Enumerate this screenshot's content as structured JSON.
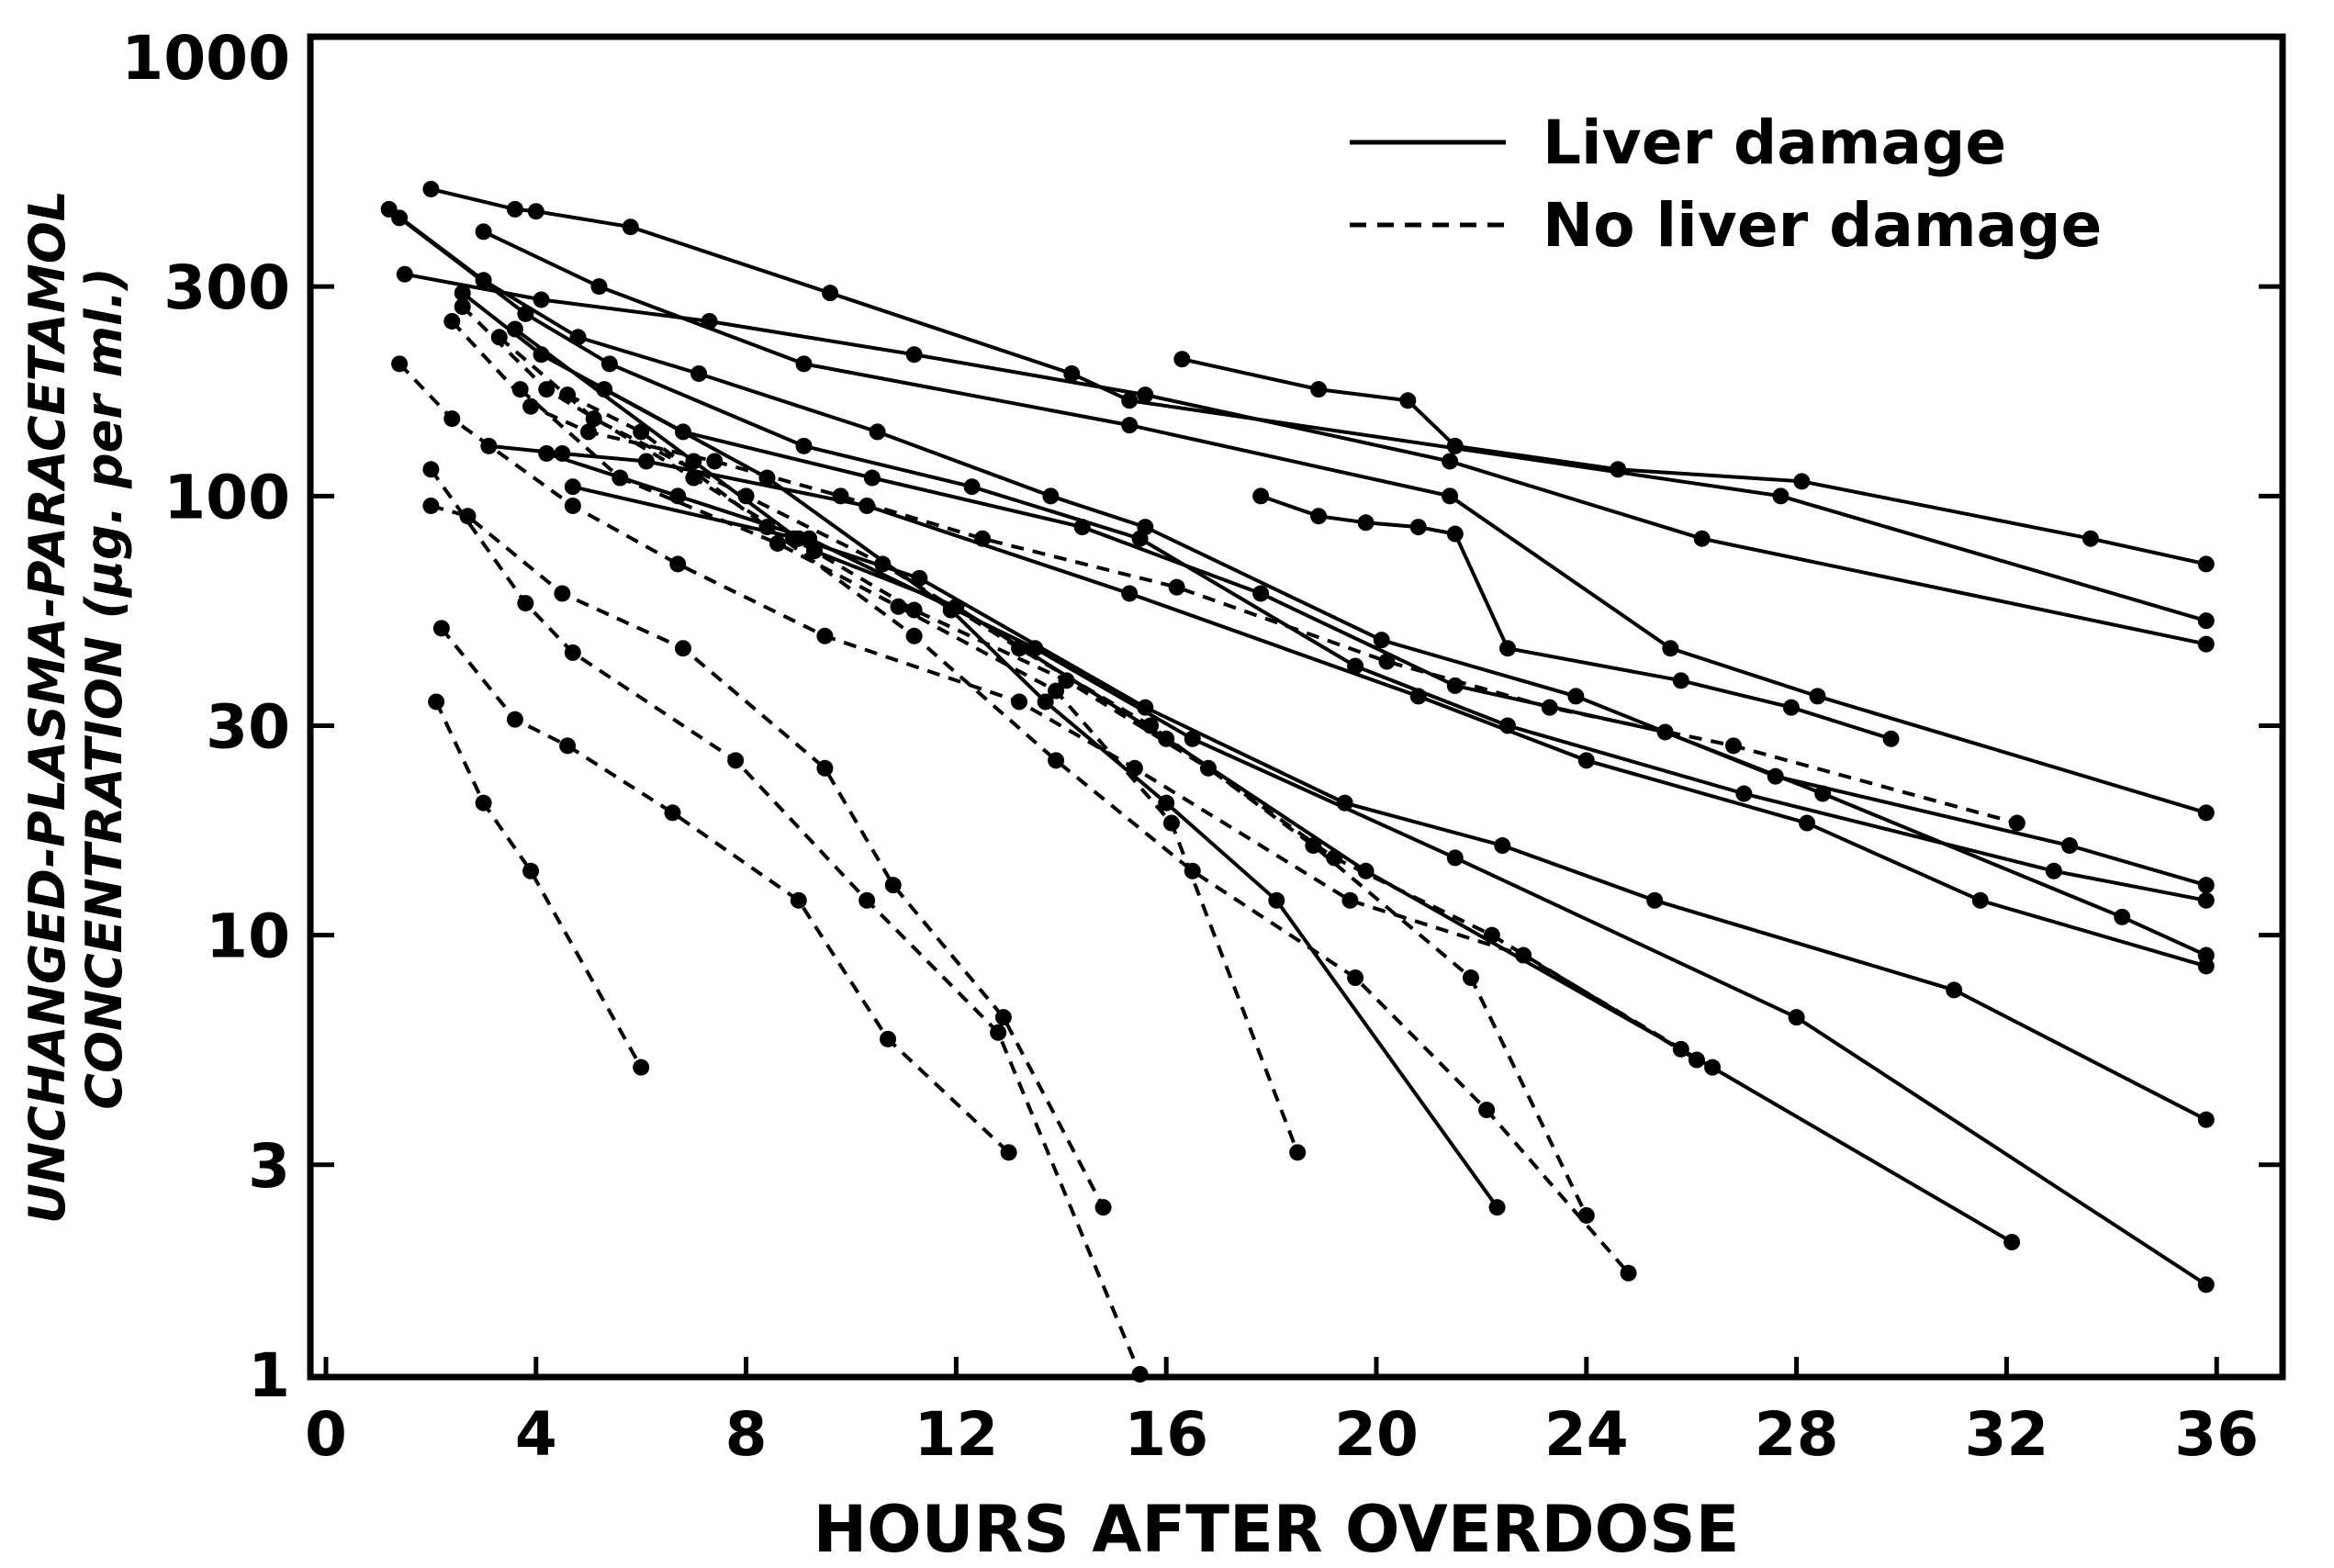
{
  "chart_data": {
    "type": "line",
    "title": "",
    "xlabel": "HOURS AFTER OVERDOSE",
    "ylabel_line1": "UNCHANGED-PLASMA-PARACETAMOL",
    "ylabel_line2": "CONCENTRATION (µg. per ml.)",
    "ylabel": "UNCHANGED-PLASMA-PARACETAMOL CONCENTRATION (µg. per ml.)",
    "xlim": [
      0,
      39
    ],
    "ylim": [
      1,
      1000
    ],
    "yscale": "log",
    "grid": false,
    "legend_position": "upper right",
    "x_ticks": [
      0,
      4,
      8,
      12,
      16,
      20,
      24,
      28,
      32,
      36
    ],
    "x_tick_labels": [
      "0",
      "4",
      "8",
      "12",
      "16",
      "20",
      "24",
      "28",
      "32",
      "36"
    ],
    "y_ticks": [
      1,
      3,
      10,
      30,
      100,
      300,
      1000
    ],
    "y_tick_labels": [
      "1",
      "3",
      "10",
      "30",
      "100",
      "300",
      "1000"
    ],
    "legend": [
      {
        "label": "Liver damage",
        "style": "solid"
      },
      {
        "label": "No liver damage",
        "style": "dashed"
      }
    ],
    "series": [
      {
        "name": "Liver damage 1",
        "group": "Liver damage",
        "x": [
          2.0,
          3.6,
          4.0,
          5.8,
          9.6,
          14.2,
          15.3,
          27.7,
          35.8
        ],
        "y": [
          500,
          450,
          445,
          410,
          290,
          190,
          165,
          100,
          52
        ]
      },
      {
        "name": "Liver damage 2",
        "group": "Liver damage",
        "x": [
          1.5,
          4.1,
          7.3,
          11.2,
          15.6,
          21.4,
          26.2,
          35.8
        ],
        "y": [
          320,
          280,
          250,
          210,
          170,
          120,
          80,
          46
        ]
      },
      {
        "name": "Liver damage 3",
        "group": "Liver damage",
        "x": [
          16.3,
          18.9,
          20.6,
          21.5,
          24.6,
          28.1,
          33.6,
          35.8
        ],
        "y": [
          205,
          175,
          165,
          130,
          115,
          108,
          80,
          70
        ]
      },
      {
        "name": "Liver damage 4",
        "group": "Liver damage",
        "x": [
          3.0,
          5.2,
          9.1,
          15.3,
          21.4,
          25.6,
          28.4,
          35.8
        ],
        "y": [
          400,
          300,
          200,
          145,
          100,
          45,
          35,
          19
        ]
      },
      {
        "name": "Liver damage 5",
        "group": "Liver damage",
        "x": [
          17.8,
          18.9,
          19.8,
          20.8,
          21.5,
          22.5,
          25.8,
          27.9,
          29.8
        ],
        "y": [
          100,
          90,
          87,
          85,
          82,
          45,
          38,
          33,
          28
        ]
      },
      {
        "name": "Liver damage 6",
        "group": "Liver damage",
        "x": [
          1.2,
          3.0,
          4.8,
          7.1,
          10.5,
          13.8,
          15.6,
          20.1,
          23.8,
          27.6,
          33.2,
          35.8
        ],
        "y": [
          450,
          310,
          230,
          190,
          140,
          100,
          85,
          47,
          35,
          23,
          16,
          13
        ]
      },
      {
        "name": "Liver damage 7",
        "group": "Liver damage",
        "x": [
          1.4,
          3.8,
          5.4,
          9.1,
          12.3,
          15.5,
          19.6,
          22.5,
          27.0,
          32.9,
          35.8
        ],
        "y": [
          430,
          260,
          200,
          130,
          105,
          80,
          41,
          30,
          21,
          14,
          12
        ]
      },
      {
        "name": "Liver damage 8",
        "group": "Liver damage",
        "x": [
          2.6,
          4.1,
          6.8,
          10.4,
          14.4,
          17.8,
          21.5,
          25.5,
          28.5,
          34.2,
          35.8
        ],
        "y": [
          290,
          210,
          140,
          110,
          85,
          60,
          37,
          29,
          21,
          11,
          9
        ]
      },
      {
        "name": "Liver damage 9",
        "group": "Liver damage",
        "x": [
          3.1,
          4.5,
          6.1,
          10.3,
          15.3,
          20.8,
          24.0,
          28.2,
          31.5,
          35.8
        ],
        "y": [
          130,
          125,
          120,
          95,
          60,
          35,
          25,
          18,
          12,
          8.5
        ]
      },
      {
        "name": "Liver damage 10",
        "group": "Liver damage",
        "x": [
          4.7,
          9.0,
          11.3,
          15.6,
          19.4,
          22.4,
          25.3,
          31.0,
          35.8
        ],
        "y": [
          105,
          80,
          65,
          33,
          20,
          16,
          12,
          7.5,
          3.8
        ]
      },
      {
        "name": "Liver damage 11",
        "group": "Liver damage",
        "x": [
          3.6,
          7.0,
          9.3,
          12.0,
          16.0,
          19.8,
          25.8,
          32.1
        ],
        "y": [
          240,
          120,
          75,
          56,
          28,
          14,
          5.5,
          2.0
        ]
      },
      {
        "name": "Liver damage 12",
        "group": "Liver damage",
        "x": [
          4.2,
          6.7,
          9.2,
          13.5,
          16.5,
          21.5,
          28.0,
          35.8
        ],
        "y": [
          125,
          100,
          80,
          45,
          28,
          15,
          6.5,
          1.6
        ]
      },
      {
        "name": "Liver damage 13",
        "group": "Liver damage",
        "x": [
          5.3,
          8.4,
          11.9,
          13.7,
          16.0,
          18.1,
          22.3
        ],
        "y": [
          175,
          110,
          55,
          34,
          20,
          12,
          2.4
        ]
      },
      {
        "name": "No liver damage 1",
        "group": "No liver damage",
        "x": [
          1.4,
          2.4,
          4.7,
          6.7,
          9.5,
          13.2,
          15.4,
          19.5,
          22.8,
          26.4
        ],
        "y": [
          200,
          150,
          95,
          70,
          48,
          34,
          24,
          12,
          9,
          5
        ]
      },
      {
        "name": "No liver damage 2",
        "group": "No liver damage",
        "x": [
          2.4,
          3.9,
          5.0,
          7.4,
          9.8,
          12.5,
          16.2,
          20.2,
          23.3,
          26.8,
          32.2
        ],
        "y": [
          250,
          160,
          140,
          120,
          100,
          80,
          62,
          42,
          33,
          27,
          18
        ]
      },
      {
        "name": "No liver damage 3",
        "group": "No liver damage",
        "x": [
          2.6,
          4.2,
          7.0,
          8.9,
          11.2,
          14.1,
          16.8,
          19.2,
          22.2,
          26.1
        ],
        "y": [
          270,
          175,
          110,
          80,
          55,
          38,
          24,
          15,
          10,
          5.2
        ]
      },
      {
        "name": "No liver damage 4",
        "group": "No liver damage",
        "x": [
          3.3,
          5.1,
          8.0,
          10.6,
          13.2,
          15.7,
          18.8,
          21.8,
          24.0
        ],
        "y": [
          230,
          150,
          100,
          70,
          45,
          30,
          16,
          8,
          2.3
        ]
      },
      {
        "name": "No liver damage 5",
        "group": "No liver damage",
        "x": [
          4.6,
          6.0,
          8.4,
          11.2,
          13.9,
          16.5,
          19.6,
          22.1,
          24.8
        ],
        "y": [
          170,
          140,
          85,
          48,
          25,
          14,
          8,
          4,
          1.7
        ]
      },
      {
        "name": "No liver damage 6",
        "group": "No liver damage",
        "x": [
          3.7,
          5.6,
          8.6,
          10.9,
          13.9,
          16.1,
          18.5
        ],
        "y": [
          175,
          110,
          78,
          56,
          36,
          18,
          3.2
        ]
      },
      {
        "name": "No liver damage 7",
        "group": "No liver damage",
        "x": [
          2.0,
          3.8,
          4.7,
          7.8,
          10.3,
          12.8,
          15.5
        ],
        "y": [
          115,
          57,
          44,
          25,
          12,
          6,
          1.0
        ]
      },
      {
        "name": "No liver damage 8",
        "group": "No liver damage",
        "x": [
          2.0,
          2.7,
          4.5,
          6.8,
          9.5,
          10.8,
          12.9,
          14.8
        ],
        "y": [
          95,
          90,
          60,
          45,
          24,
          13,
          6.5,
          2.4
        ]
      },
      {
        "name": "No liver damage 9",
        "group": "No liver damage",
        "x": [
          2.2,
          3.6,
          4.6,
          6.6,
          9.0,
          10.7,
          13.0
        ],
        "y": [
          50,
          31,
          27,
          19,
          12,
          5.8,
          3.2
        ]
      },
      {
        "name": "No liver damage 10",
        "group": "No liver damage",
        "x": [
          2.1,
          3.0,
          3.9,
          6.0
        ],
        "y": [
          34,
          20,
          14,
          5.0
        ]
      }
    ]
  }
}
